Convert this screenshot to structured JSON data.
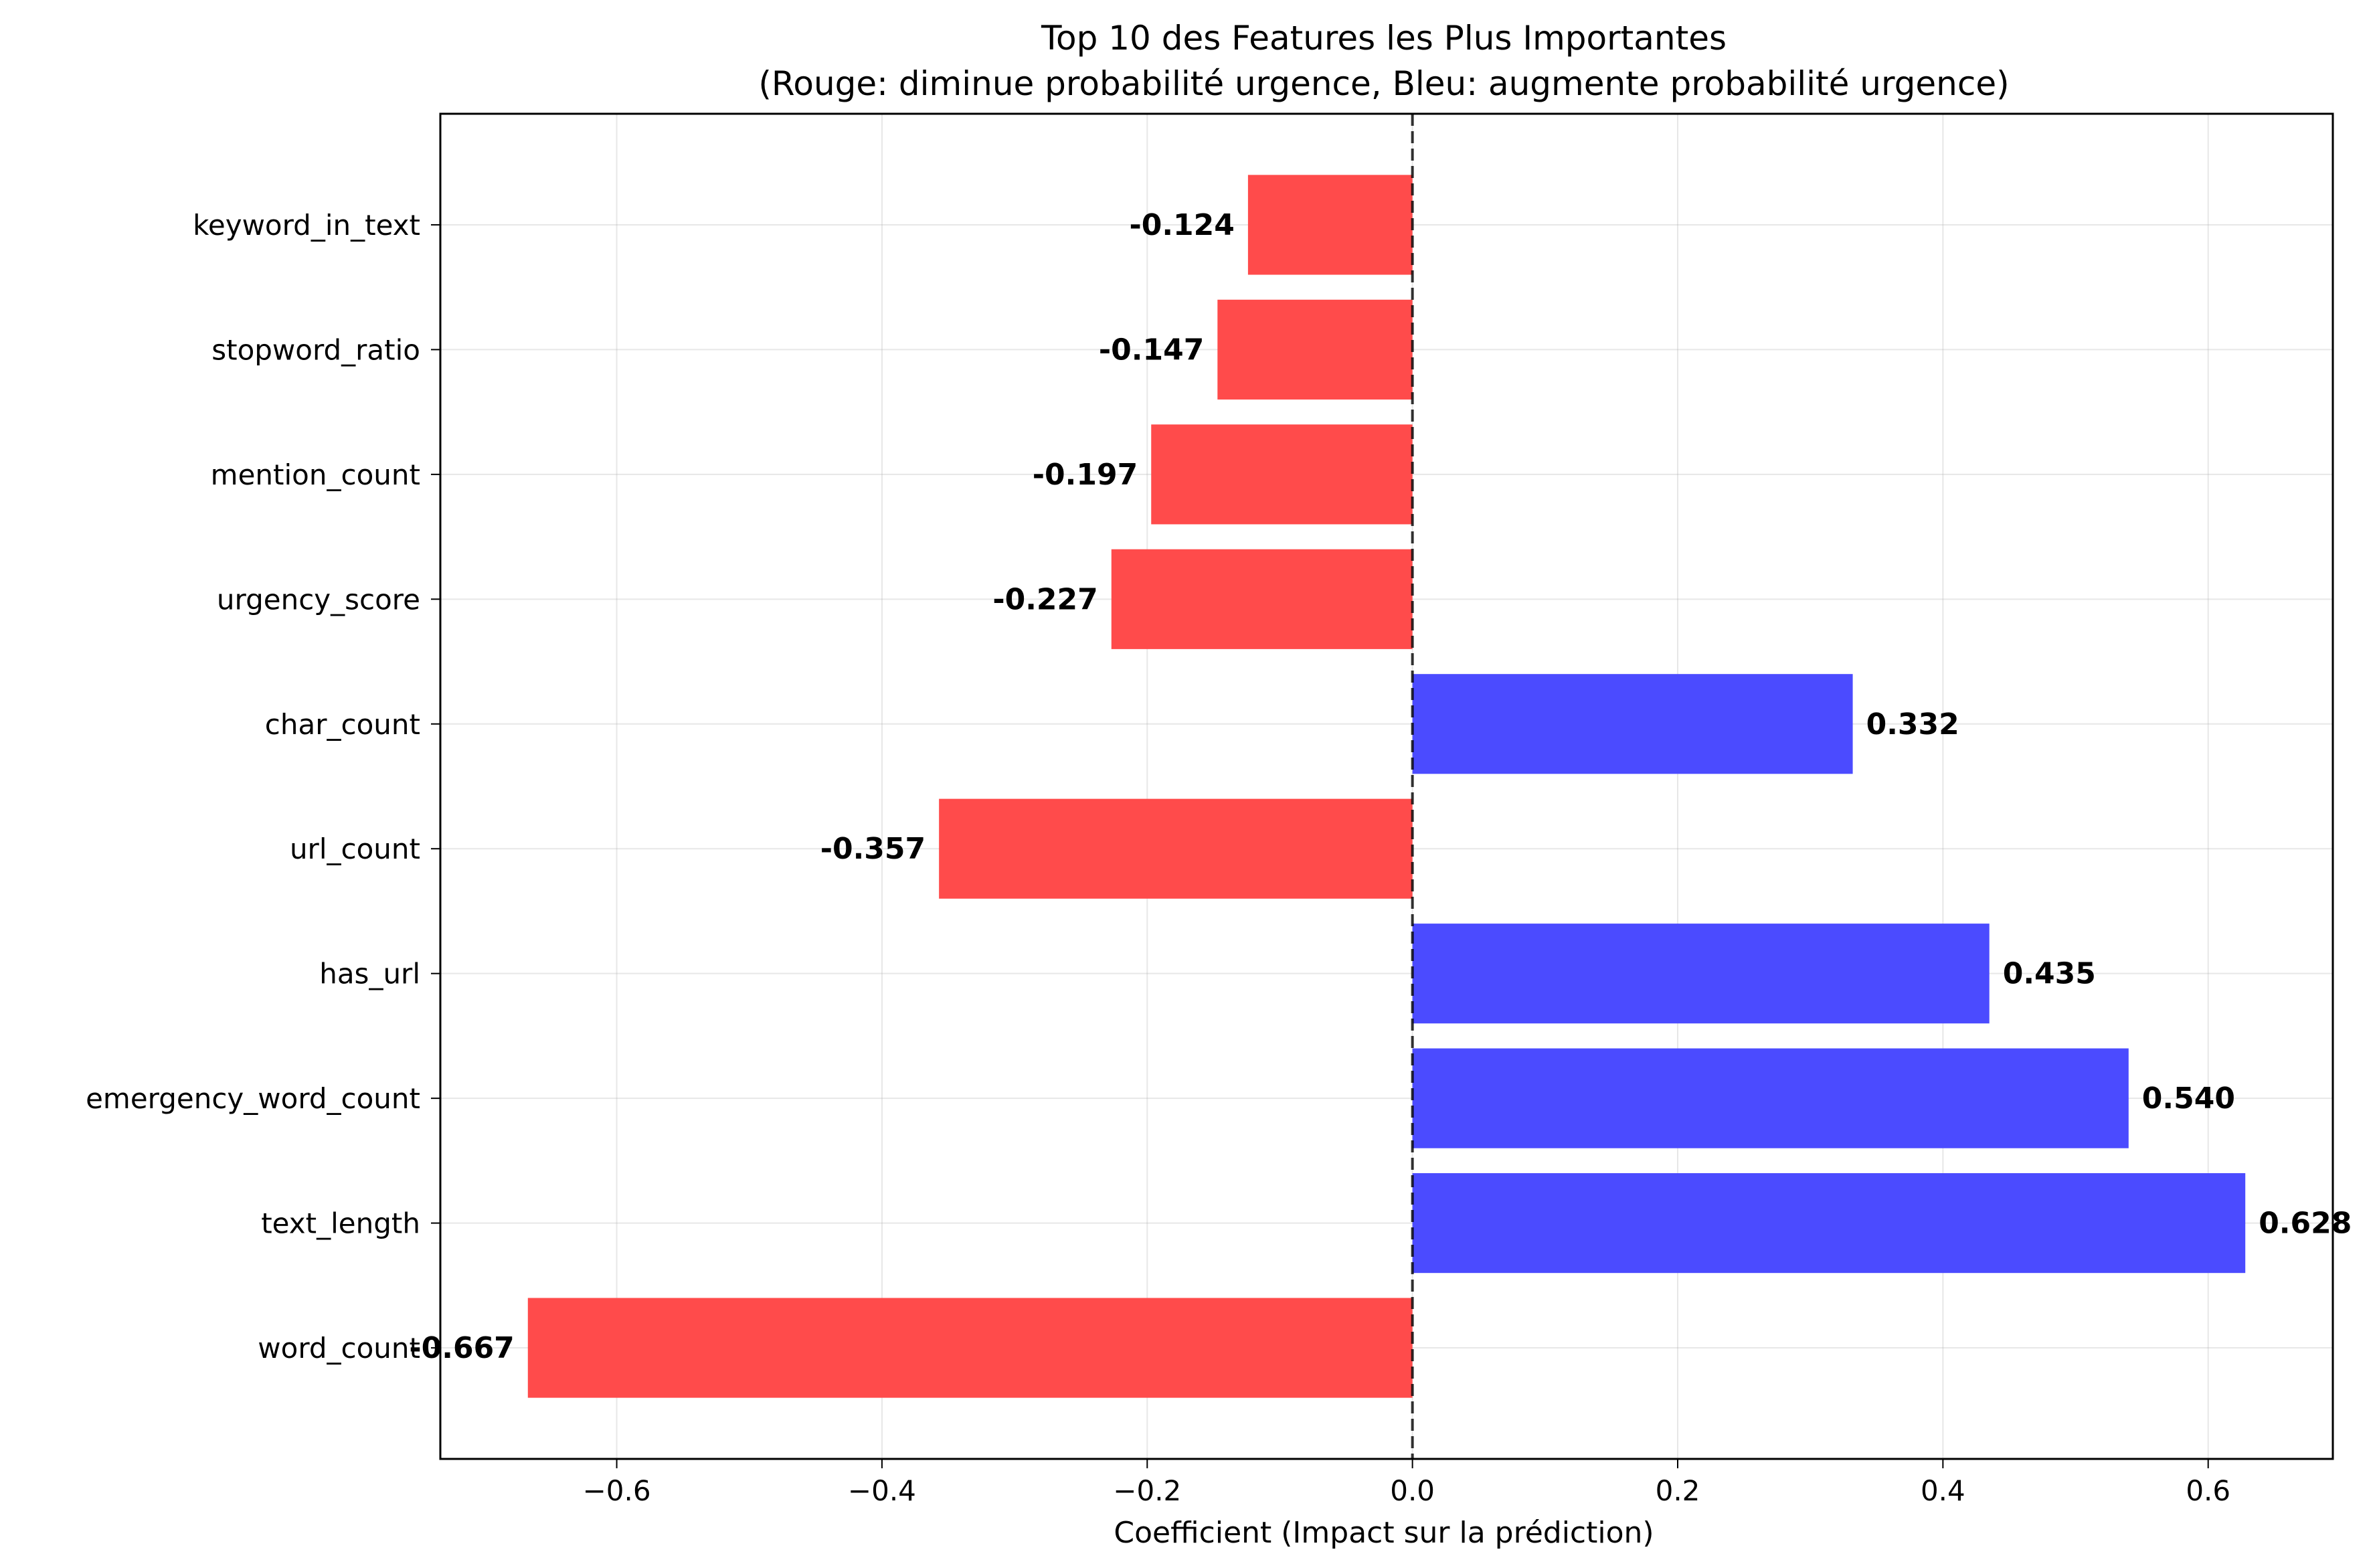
{
  "chart_data": {
    "type": "bar",
    "orientation": "horizontal",
    "title": "Top 10 des Features les Plus Importantes",
    "subtitle": "(Rouge: diminue probabilité urgence, Bleu: augmente probabilité urgence)",
    "xlabel": "Coefficient (Impact sur la prédiction)",
    "ylabel": "",
    "xlim": [
      -0.733,
      0.694
    ],
    "xticks": [
      -0.6,
      -0.4,
      -0.2,
      0.0,
      0.2,
      0.4,
      0.6
    ],
    "xtick_labels": [
      "−0.6",
      "−0.4",
      "−0.2",
      "0.0",
      "0.2",
      "0.4",
      "0.6"
    ],
    "grid": true,
    "zero_line": "dashed",
    "colors": {
      "negative": "#ff4b4b",
      "positive": "#4b4bff"
    },
    "categories": [
      "keyword_in_text",
      "stopword_ratio",
      "mention_count",
      "urgency_score",
      "char_count",
      "url_count",
      "has_url",
      "emergency_word_count",
      "text_length",
      "word_count"
    ],
    "values": [
      -0.124,
      -0.147,
      -0.197,
      -0.227,
      0.332,
      -0.357,
      0.435,
      0.54,
      0.628,
      -0.667
    ],
    "value_labels": [
      "-0.124",
      "-0.147",
      "-0.197",
      "-0.227",
      "0.332",
      "-0.357",
      "0.435",
      "0.540",
      "0.628",
      "-0.667"
    ]
  }
}
